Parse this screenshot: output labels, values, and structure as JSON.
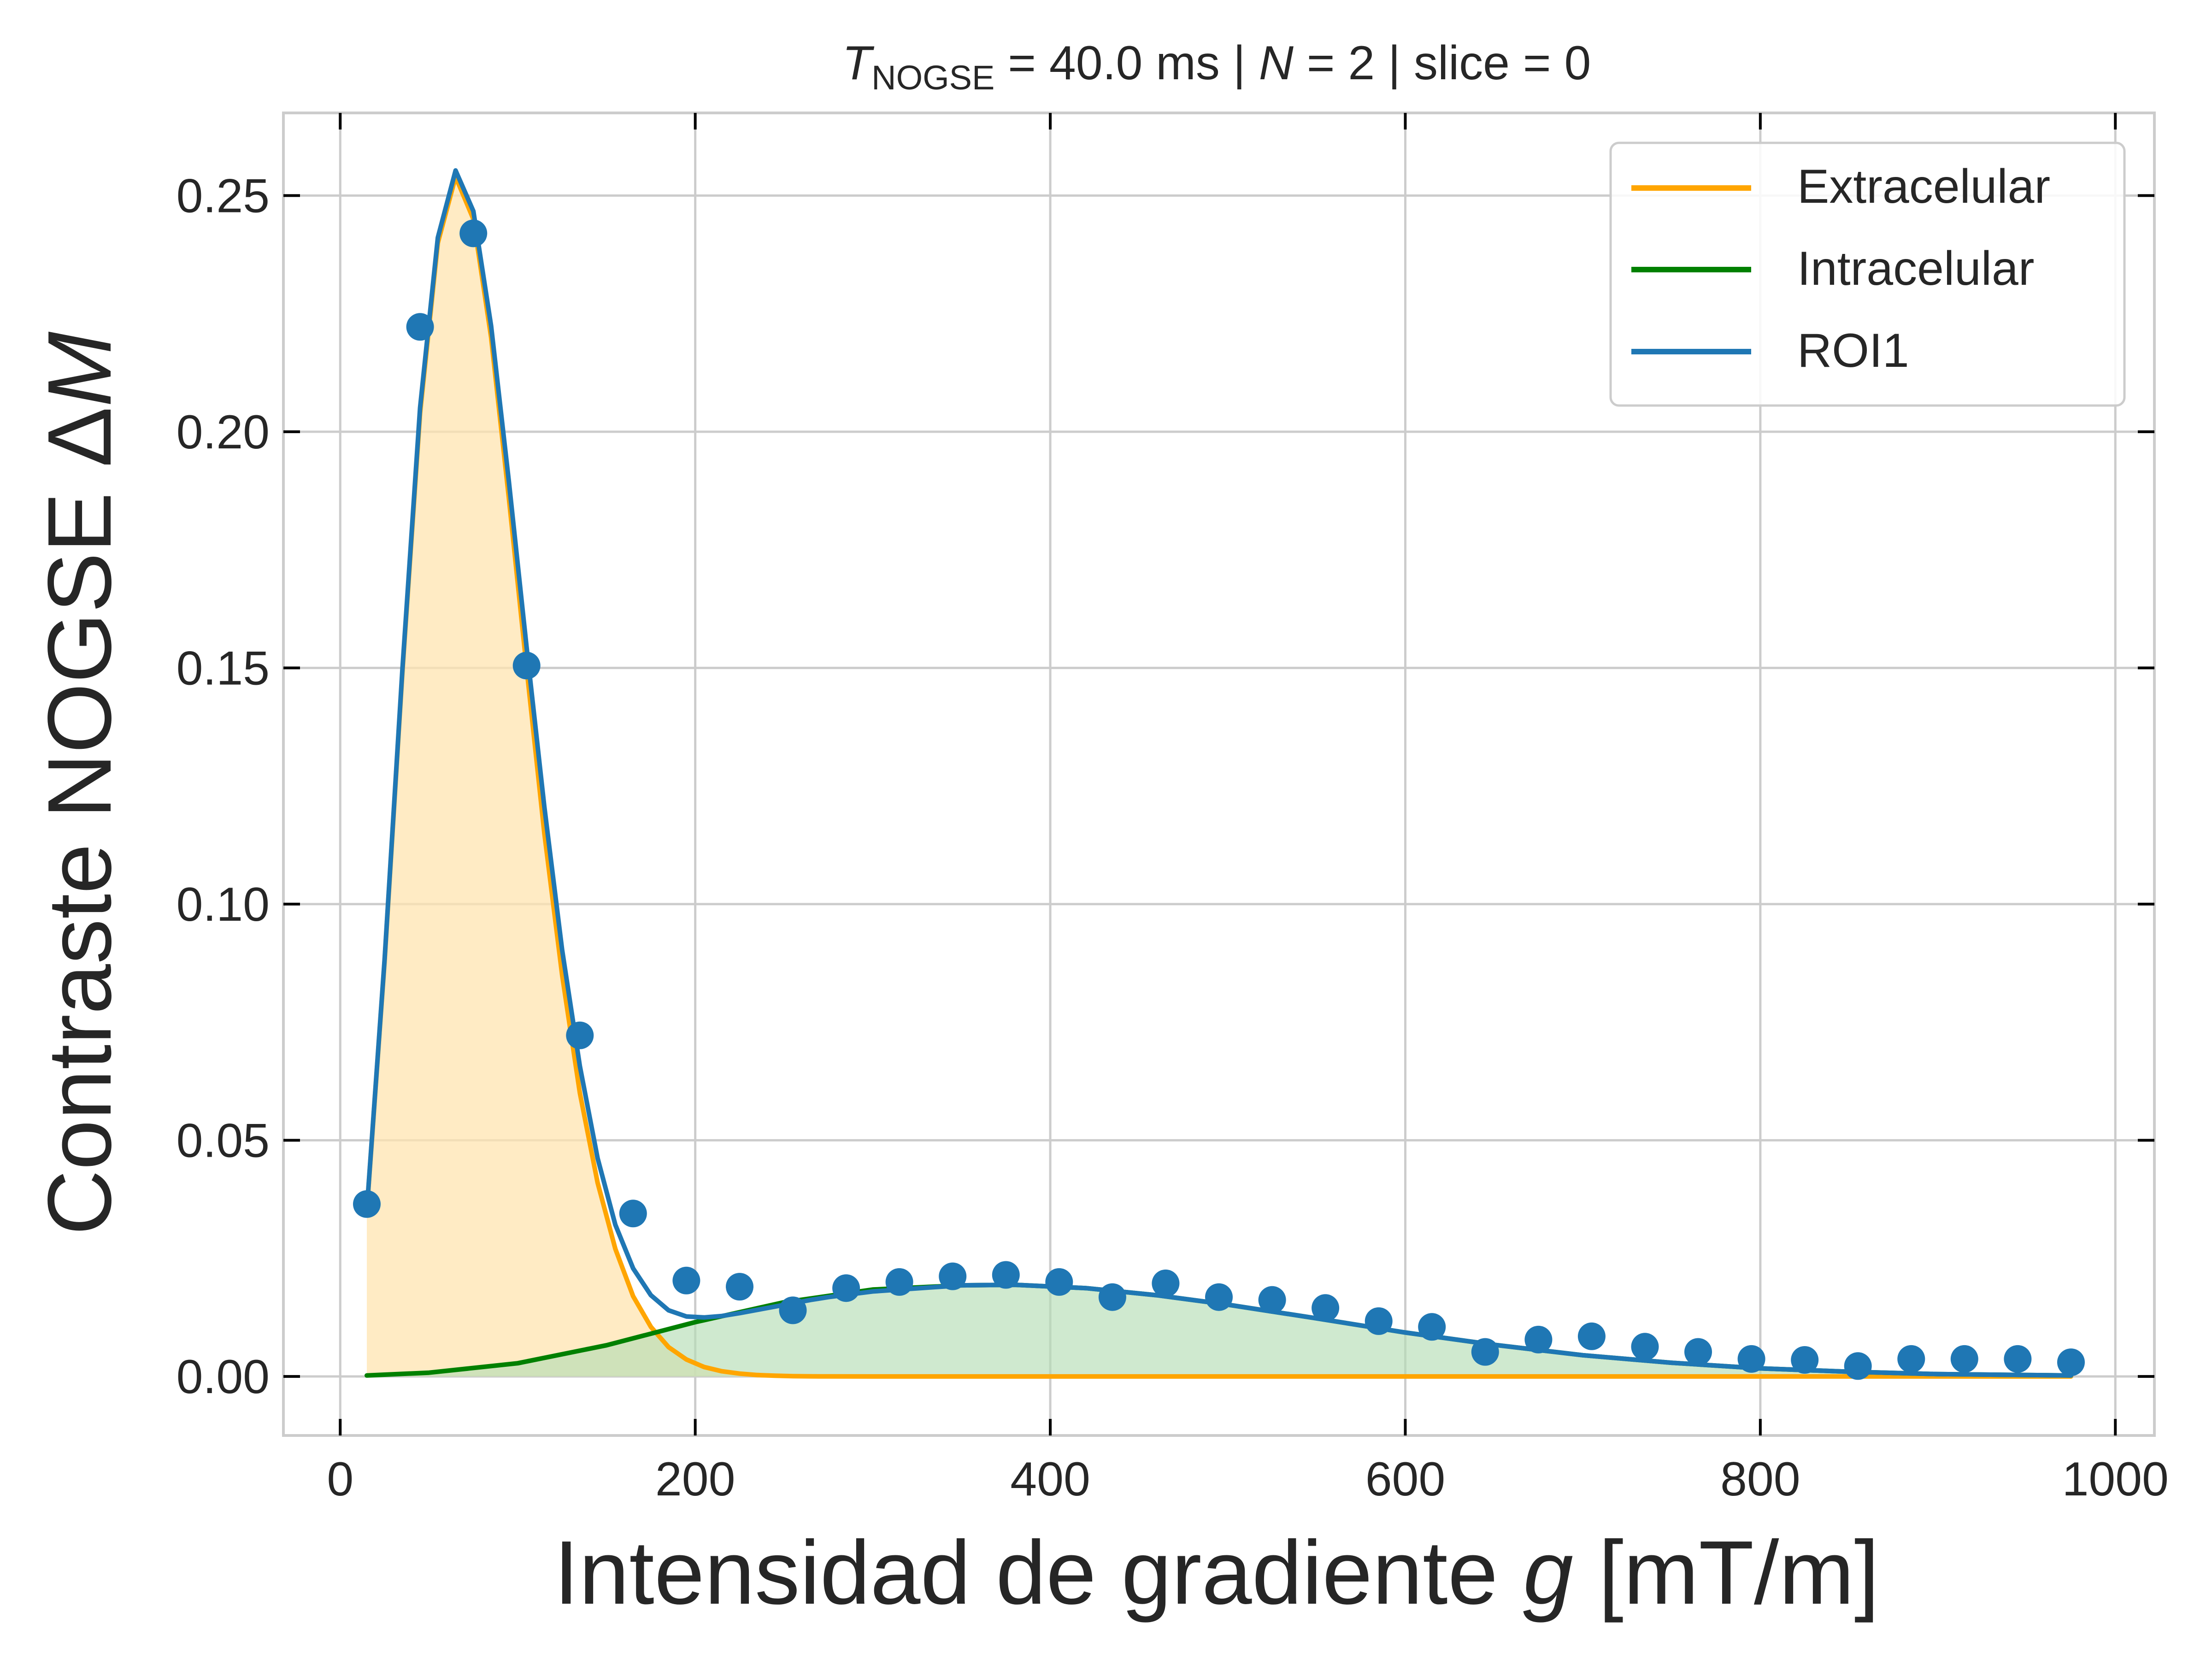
{
  "chart_data": {
    "type": "line",
    "title": {
      "symbol": "T",
      "subscript": "NOGSE",
      "part1": " = 40.0 ms | ",
      "n_symbol": "N",
      "part2": " = 2 | slice = 0"
    },
    "xlabel": {
      "text": "Intensidad de gradiente ",
      "symbol": "g",
      "unit": " [mT/m]"
    },
    "ylabel": {
      "text": "Contraste NOGSE Δ",
      "symbol": "M"
    },
    "xlim": [
      -32,
      1022
    ],
    "ylim": [
      -0.0125,
      0.2675
    ],
    "x_ticks": [
      0,
      200,
      400,
      600,
      800,
      1000
    ],
    "x_tick_labels": [
      "0",
      "200",
      "400",
      "600",
      "800",
      "1000"
    ],
    "y_ticks": [
      0.0,
      0.05,
      0.1,
      0.15,
      0.2,
      0.25
    ],
    "y_tick_labels": [
      "0.00",
      "0.05",
      "0.10",
      "0.15",
      "0.20",
      "0.25"
    ],
    "grid": true,
    "legend_position": "top-right",
    "colors": {
      "extracellular": "#FFA500",
      "intracellular": "#008000",
      "roi": "#1F77B4",
      "extracellular_fill": "#FFE4B0",
      "intracellular_fill": "#B5DDB5",
      "grid": "#CCCCCC",
      "axis": "#CCCCCC"
    },
    "series": [
      {
        "name": "Extracelular",
        "kind": "curve",
        "filled": true,
        "color": "#FFA500",
        "x": [
          15,
          25,
          35,
          45,
          55,
          65,
          75,
          85,
          95,
          105,
          115,
          125,
          135,
          145,
          155,
          165,
          175,
          185,
          195,
          205,
          215,
          225,
          235,
          245,
          255,
          265,
          275,
          300,
          350,
          400,
          500,
          600,
          700,
          800,
          900,
          975
        ],
        "y": [
          0.035,
          0.088,
          0.149,
          0.204,
          0.24,
          0.254,
          0.245,
          0.22,
          0.186,
          0.15,
          0.115,
          0.085,
          0.06,
          0.041,
          0.027,
          0.017,
          0.0105,
          0.0062,
          0.0036,
          0.002,
          0.0011,
          0.0006,
          0.0003,
          0.00015,
          7e-05,
          3e-05,
          1e-05,
          0,
          0,
          0,
          0,
          0,
          0,
          0,
          0,
          0
        ]
      },
      {
        "name": "Intracelular",
        "kind": "curve",
        "filled": true,
        "color": "#008000",
        "x": [
          15,
          50,
          100,
          150,
          200,
          250,
          300,
          350,
          380,
          420,
          460,
          500,
          550,
          600,
          650,
          700,
          750,
          800,
          850,
          900,
          975
        ],
        "y": [
          0.0002,
          0.0008,
          0.0028,
          0.0066,
          0.0115,
          0.0157,
          0.0184,
          0.0193,
          0.0194,
          0.0187,
          0.0172,
          0.0152,
          0.0123,
          0.0093,
          0.0067,
          0.0045,
          0.0029,
          0.0017,
          0.001,
          0.0005,
          0.0002
        ]
      },
      {
        "name": "ROI1",
        "kind": "fit+points",
        "color": "#1F77B4",
        "fit_x": [
          15,
          25,
          35,
          45,
          55,
          65,
          75,
          85,
          95,
          105,
          115,
          125,
          135,
          145,
          155,
          165,
          175,
          185,
          195,
          205,
          215,
          225,
          235,
          245,
          255,
          265,
          275,
          300,
          350,
          380,
          420,
          460,
          500,
          550,
          600,
          650,
          700,
          750,
          800,
          850,
          900,
          975
        ],
        "fit_y": [
          0.0352,
          0.0883,
          0.1495,
          0.2051,
          0.2411,
          0.2553,
          0.2467,
          0.2224,
          0.1895,
          0.1544,
          0.1206,
          0.0903,
          0.0657,
          0.0462,
          0.0321,
          0.0229,
          0.0172,
          0.014,
          0.0127,
          0.0125,
          0.0128,
          0.0134,
          0.0141,
          0.0148,
          0.0155,
          0.0162,
          0.0168,
          0.018,
          0.0193,
          0.0194,
          0.0187,
          0.0172,
          0.0152,
          0.0123,
          0.0093,
          0.0067,
          0.0045,
          0.0029,
          0.0017,
          0.001,
          0.0005,
          0.0002
        ],
        "points_x": [
          15,
          45,
          75,
          105,
          135,
          165,
          195,
          225,
          255,
          285,
          315,
          345,
          375,
          405,
          435,
          465,
          495,
          525,
          555,
          585,
          615,
          645,
          675,
          705,
          735,
          765,
          795,
          825,
          855,
          885,
          915,
          945,
          975
        ],
        "points_y": [
          0.0365,
          0.2222,
          0.242,
          0.1505,
          0.0722,
          0.0345,
          0.0203,
          0.019,
          0.014,
          0.0187,
          0.02,
          0.0212,
          0.0215,
          0.02,
          0.0168,
          0.0197,
          0.0168,
          0.0162,
          0.0145,
          0.0117,
          0.0105,
          0.0052,
          0.0078,
          0.0085,
          0.0063,
          0.0052,
          0.0037,
          0.0035,
          0.0022,
          0.0037,
          0.0037,
          0.0037,
          0.003
        ]
      }
    ]
  }
}
